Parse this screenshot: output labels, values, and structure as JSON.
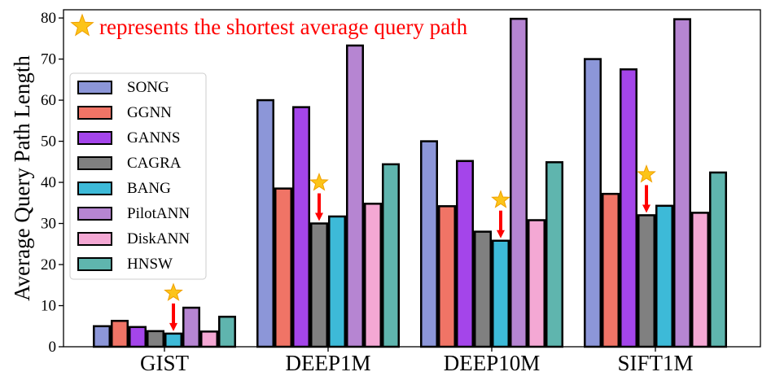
{
  "chart_data": {
    "type": "bar",
    "title": "",
    "xlabel": "",
    "ylabel": "Average Query Path Length",
    "ylim": [
      0,
      82
    ],
    "yticks": [
      0,
      10,
      20,
      30,
      40,
      50,
      60,
      70,
      80
    ],
    "categories": [
      "GIST",
      "DEEP1M",
      "DEEP10M",
      "SIFT1M"
    ],
    "series": [
      {
        "name": "SONG",
        "color": "#8c96d8",
        "values": [
          5.0,
          60.0,
          50.0,
          70.0
        ]
      },
      {
        "name": "GGNN",
        "color": "#f07466",
        "values": [
          6.3,
          38.5,
          34.2,
          37.2
        ]
      },
      {
        "name": "GANNS",
        "color": "#a445ea",
        "values": [
          4.8,
          58.3,
          45.2,
          67.5
        ]
      },
      {
        "name": "CAGRA",
        "color": "#808080",
        "values": [
          3.8,
          30.0,
          28.0,
          32.0
        ]
      },
      {
        "name": "BANG",
        "color": "#3dbad8",
        "values": [
          3.2,
          31.7,
          25.8,
          34.3
        ]
      },
      {
        "name": "PilotANN",
        "color": "#b685d2",
        "values": [
          9.5,
          73.3,
          79.8,
          79.7
        ]
      },
      {
        "name": "DiskANN",
        "color": "#f4a8d4",
        "values": [
          3.7,
          34.8,
          30.8,
          32.6
        ]
      },
      {
        "name": "HNSW",
        "color": "#5fb5ae",
        "values": [
          7.3,
          44.4,
          44.9,
          42.4
        ]
      }
    ],
    "legend_position": "left",
    "grid": false,
    "annotation": {
      "text": "represents the shortest average query path",
      "marker": "star-icon",
      "marker_color": "#fcc419",
      "text_color": "#ff0000",
      "arrow_color": "#ff0000",
      "marked_series_per_category": [
        "BANG",
        "CAGRA",
        "BANG",
        "CAGRA"
      ]
    }
  }
}
